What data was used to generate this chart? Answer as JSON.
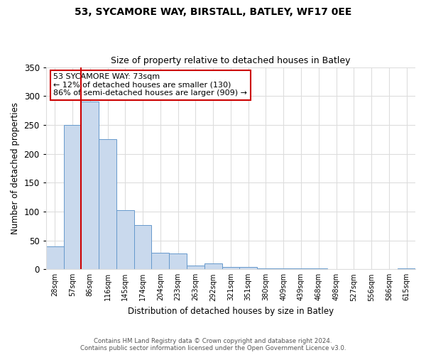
{
  "title": "53, SYCAMORE WAY, BIRSTALL, BATLEY, WF17 0EE",
  "subtitle": "Size of property relative to detached houses in Batley",
  "xlabel": "Distribution of detached houses by size in Batley",
  "ylabel": "Number of detached properties",
  "bin_labels": [
    "28sqm",
    "57sqm",
    "86sqm",
    "116sqm",
    "145sqm",
    "174sqm",
    "204sqm",
    "233sqm",
    "263sqm",
    "292sqm",
    "321sqm",
    "351sqm",
    "380sqm",
    "409sqm",
    "439sqm",
    "468sqm",
    "498sqm",
    "527sqm",
    "556sqm",
    "586sqm",
    "615sqm"
  ],
  "bar_values": [
    40,
    250,
    291,
    225,
    103,
    77,
    29,
    28,
    7,
    10,
    4,
    4,
    2,
    1,
    1,
    1,
    0,
    0,
    0,
    0,
    2
  ],
  "bar_color": "#c9d9ed",
  "bar_edge_color": "#6699cc",
  "vline_x": 1.5,
  "vline_color": "#cc0000",
  "annotation_text": "53 SYCAMORE WAY: 73sqm\n← 12% of detached houses are smaller (130)\n86% of semi-detached houses are larger (909) →",
  "annotation_box_color": "#ffffff",
  "annotation_box_edge": "#cc0000",
  "ylim": [
    0,
    350
  ],
  "yticks": [
    0,
    50,
    100,
    150,
    200,
    250,
    300,
    350
  ],
  "footer_line1": "Contains HM Land Registry data © Crown copyright and database right 2024.",
  "footer_line2": "Contains public sector information licensed under the Open Government Licence v3.0.",
  "background_color": "#ffffff",
  "grid_color": "#dddddd"
}
